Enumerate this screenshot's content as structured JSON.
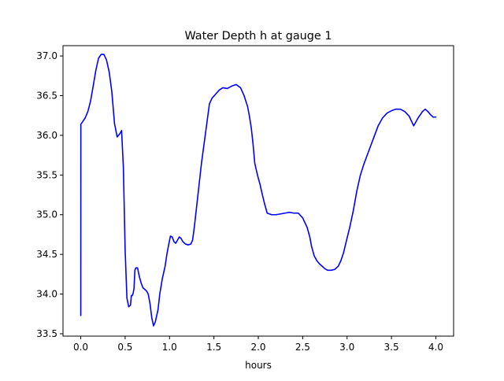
{
  "chart_data": {
    "type": "line",
    "title": "Water Depth h at gauge 1",
    "xlabel": "hours",
    "ylabel": "",
    "xlim": [
      -0.2,
      4.2
    ],
    "ylim": [
      33.47,
      37.13
    ],
    "xticks": [
      "0.0",
      "0.5",
      "1.0",
      "1.5",
      "2.0",
      "2.5",
      "3.0",
      "3.5",
      "4.0"
    ],
    "yticks": [
      "33.5",
      "34.0",
      "34.5",
      "35.0",
      "35.5",
      "36.0",
      "36.5",
      "37.0"
    ],
    "grid": false,
    "colors": {
      "line": "#0000ff"
    },
    "series": [
      {
        "x": [
          0.0,
          0.001,
          0.02,
          0.05,
          0.08,
          0.11,
          0.14,
          0.17,
          0.2,
          0.23,
          0.26,
          0.29,
          0.32,
          0.35,
          0.38,
          0.41,
          0.44,
          0.46,
          0.48,
          0.5,
          0.52,
          0.54,
          0.56,
          0.57,
          0.58,
          0.59,
          0.6,
          0.61,
          0.62,
          0.64,
          0.66,
          0.68,
          0.7,
          0.72,
          0.74,
          0.76,
          0.78,
          0.8,
          0.82,
          0.84,
          0.87,
          0.89,
          0.92,
          0.95,
          0.97,
          0.99,
          1.01,
          1.03,
          1.05,
          1.07,
          1.09,
          1.11,
          1.13,
          1.15,
          1.18,
          1.21,
          1.24,
          1.26,
          1.28,
          1.3,
          1.33,
          1.36,
          1.39,
          1.42,
          1.45,
          1.48,
          1.52,
          1.56,
          1.6,
          1.65,
          1.7,
          1.75,
          1.8,
          1.84,
          1.88,
          1.9,
          1.92,
          1.94,
          1.96,
          1.98,
          2.0,
          2.02,
          2.04,
          2.07,
          2.1,
          2.15,
          2.2,
          2.25,
          2.3,
          2.35,
          2.4,
          2.45,
          2.5,
          2.55,
          2.58,
          2.6,
          2.63,
          2.66,
          2.69,
          2.72,
          2.75,
          2.78,
          2.82,
          2.86,
          2.9,
          2.93,
          2.96,
          2.99,
          3.03,
          3.07,
          3.11,
          3.15,
          3.19,
          3.23,
          3.27,
          3.31,
          3.35,
          3.4,
          3.45,
          3.5,
          3.55,
          3.6,
          3.65,
          3.7,
          3.75,
          3.8,
          3.85,
          3.88,
          3.91,
          3.94,
          3.97,
          4.0
        ],
        "y": [
          33.73,
          36.14,
          36.17,
          36.22,
          36.3,
          36.43,
          36.62,
          36.82,
          36.97,
          37.02,
          37.02,
          36.95,
          36.8,
          36.55,
          36.15,
          35.98,
          36.02,
          36.06,
          35.6,
          34.55,
          33.95,
          33.84,
          33.86,
          33.98,
          33.98,
          34.01,
          34.07,
          34.3,
          34.33,
          34.33,
          34.22,
          34.14,
          34.08,
          34.06,
          34.04,
          34.0,
          33.88,
          33.7,
          33.6,
          33.65,
          33.8,
          34.0,
          34.2,
          34.35,
          34.5,
          34.62,
          34.73,
          34.72,
          34.66,
          34.64,
          34.68,
          34.72,
          34.7,
          34.66,
          34.63,
          34.62,
          34.63,
          34.68,
          34.85,
          35.05,
          35.35,
          35.65,
          35.9,
          36.15,
          36.4,
          36.47,
          36.52,
          36.57,
          36.6,
          36.59,
          36.62,
          36.64,
          36.6,
          36.5,
          36.36,
          36.24,
          36.1,
          35.9,
          35.65,
          35.55,
          35.46,
          35.38,
          35.28,
          35.14,
          35.02,
          35.0,
          35.0,
          35.01,
          35.02,
          35.03,
          35.02,
          35.02,
          34.96,
          34.84,
          34.72,
          34.6,
          34.48,
          34.42,
          34.38,
          34.35,
          34.32,
          34.3,
          34.3,
          34.31,
          34.35,
          34.42,
          34.52,
          34.66,
          34.84,
          35.05,
          35.3,
          35.5,
          35.64,
          35.76,
          35.88,
          36.0,
          36.12,
          36.22,
          36.28,
          36.31,
          36.33,
          36.33,
          36.3,
          36.24,
          36.12,
          36.22,
          36.3,
          36.33,
          36.3,
          36.26,
          36.23,
          36.23
        ]
      }
    ]
  }
}
